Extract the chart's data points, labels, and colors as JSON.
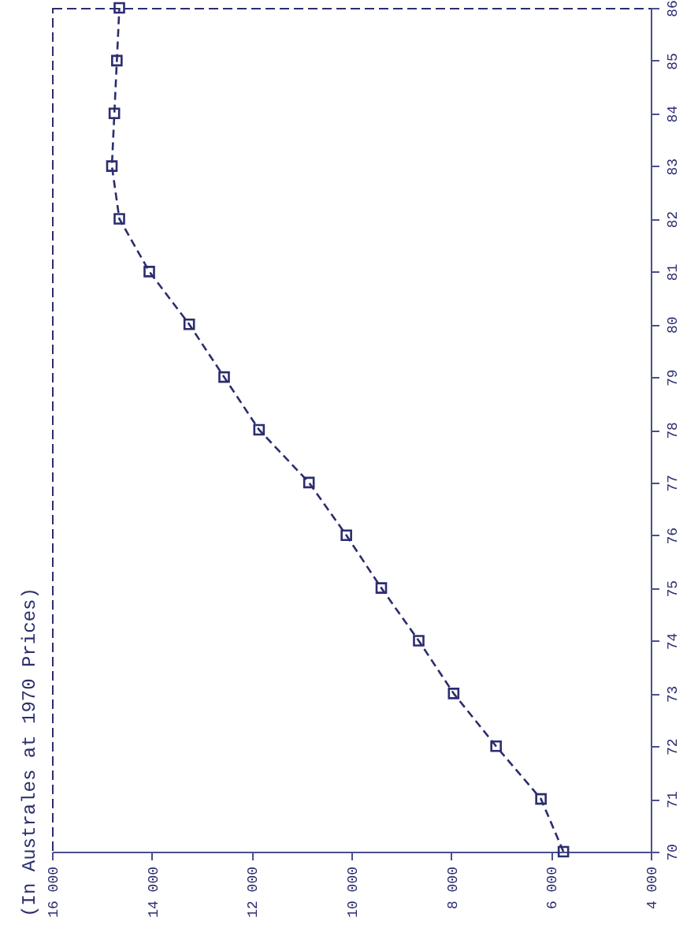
{
  "chart_data": {
    "type": "line",
    "title": "(In Australes at 1970 Prices)",
    "x": [
      5750,
      6200,
      7100,
      7950,
      8650,
      9400,
      10100,
      10850,
      11850,
      12550,
      13250,
      14050,
      14650,
      14800,
      14750,
      14700,
      14650
    ],
    "series": [
      {
        "color": "#2b2d6e",
        "values": [
          70,
          71,
          72,
          73,
          74,
          75,
          76,
          77,
          78,
          79,
          80,
          81,
          82,
          83,
          84,
          85,
          86
        ]
      }
    ],
    "xlim": [
      16000,
      4000
    ],
    "xticks": [
      {
        "value": 16000,
        "label": "16 000"
      },
      {
        "value": 14000,
        "label": "14 000"
      },
      {
        "value": 12000,
        "label": "12 000"
      },
      {
        "value": 10000,
        "label": "10 000"
      },
      {
        "value": 8000,
        "label": "8 000"
      },
      {
        "value": 6000,
        "label": "6 000"
      },
      {
        "value": 4000,
        "label": "4 000"
      }
    ],
    "ylim": [
      70,
      86
    ],
    "yticks": [
      70,
      71,
      72,
      73,
      74,
      75,
      76,
      77,
      78,
      79,
      80,
      81,
      82,
      83,
      84,
      85,
      86
    ],
    "marker": "square",
    "line_style": "dashed",
    "grid": false
  }
}
